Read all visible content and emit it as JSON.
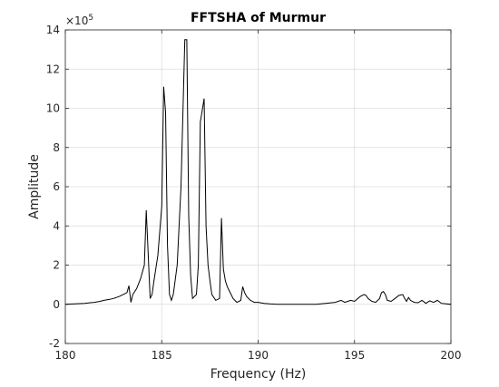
{
  "chart_data": {
    "type": "line",
    "title": "FFTSHA of Murmur",
    "xlabel": "Frequency (Hz)",
    "ylabel": "Amplitude",
    "xlim": [
      180,
      200
    ],
    "ylim": [
      -2,
      14
    ],
    "y_exponent_base": "×10",
    "y_exponent_power": "5",
    "x_ticks": [
      180,
      185,
      190,
      195,
      200
    ],
    "y_ticks": [
      -2,
      0,
      2,
      4,
      6,
      8,
      10,
      12,
      14
    ],
    "x_tick_labels": [
      "180",
      "185",
      "190",
      "195",
      "200"
    ],
    "y_tick_labels": [
      "-2",
      "0",
      "2",
      "4",
      "6",
      "8",
      "10",
      "12",
      "14"
    ],
    "grid": true,
    "line_color": "#000000",
    "series": [
      {
        "x": [
          180.0,
          180.5,
          181.0,
          181.3,
          181.5,
          181.8,
          182.0,
          182.3,
          182.5,
          182.8,
          183.0,
          183.2,
          183.3,
          183.4,
          183.5,
          183.7,
          183.9,
          184.1,
          184.2,
          184.3,
          184.4,
          184.5,
          184.6,
          184.8,
          185.0,
          185.1,
          185.2,
          185.3,
          185.4,
          185.5,
          185.6,
          185.8,
          186.0,
          186.2,
          186.3,
          186.4,
          186.5,
          186.6,
          186.8,
          186.9,
          187.0,
          187.2,
          187.3,
          187.4,
          187.5,
          187.6,
          187.8,
          188.0,
          188.1,
          188.2,
          188.3,
          188.4,
          188.5,
          188.7,
          188.9,
          189.1,
          189.2,
          189.3,
          189.4,
          189.6,
          189.8,
          190.0,
          190.3,
          190.6,
          191.0,
          191.5,
          192.0,
          192.5,
          193.0,
          193.5,
          194.0,
          194.3,
          194.5,
          194.8,
          195.0,
          195.3,
          195.5,
          195.6,
          195.7,
          195.9,
          196.1,
          196.3,
          196.4,
          196.5,
          196.6,
          196.7,
          196.9,
          197.1,
          197.3,
          197.5,
          197.6,
          197.7,
          197.8,
          197.9,
          198.1,
          198.3,
          198.5,
          198.7,
          198.9,
          199.1,
          199.3,
          199.5,
          199.7,
          200.0
        ],
        "y": [
          0.0,
          0.02,
          0.05,
          0.08,
          0.1,
          0.15,
          0.2,
          0.25,
          0.3,
          0.4,
          0.5,
          0.6,
          0.95,
          0.1,
          0.5,
          0.8,
          1.3,
          2.0,
          4.8,
          2.5,
          0.3,
          0.5,
          1.2,
          2.5,
          5.0,
          11.1,
          9.8,
          3.0,
          0.5,
          0.2,
          0.5,
          2.0,
          6.0,
          13.5,
          13.5,
          4.5,
          1.5,
          0.3,
          0.5,
          2.0,
          9.3,
          10.5,
          4.0,
          2.0,
          1.2,
          0.5,
          0.2,
          0.3,
          4.4,
          1.8,
          1.2,
          0.9,
          0.7,
          0.3,
          0.1,
          0.2,
          0.9,
          0.6,
          0.4,
          0.2,
          0.1,
          0.1,
          0.05,
          0.02,
          0.0,
          0.0,
          0.0,
          0.0,
          0.0,
          0.05,
          0.1,
          0.2,
          0.1,
          0.2,
          0.15,
          0.4,
          0.5,
          0.45,
          0.3,
          0.15,
          0.1,
          0.3,
          0.6,
          0.65,
          0.5,
          0.2,
          0.15,
          0.3,
          0.45,
          0.5,
          0.3,
          0.15,
          0.35,
          0.2,
          0.1,
          0.08,
          0.2,
          0.05,
          0.18,
          0.1,
          0.2,
          0.05,
          0.03,
          0.0
        ]
      }
    ]
  }
}
